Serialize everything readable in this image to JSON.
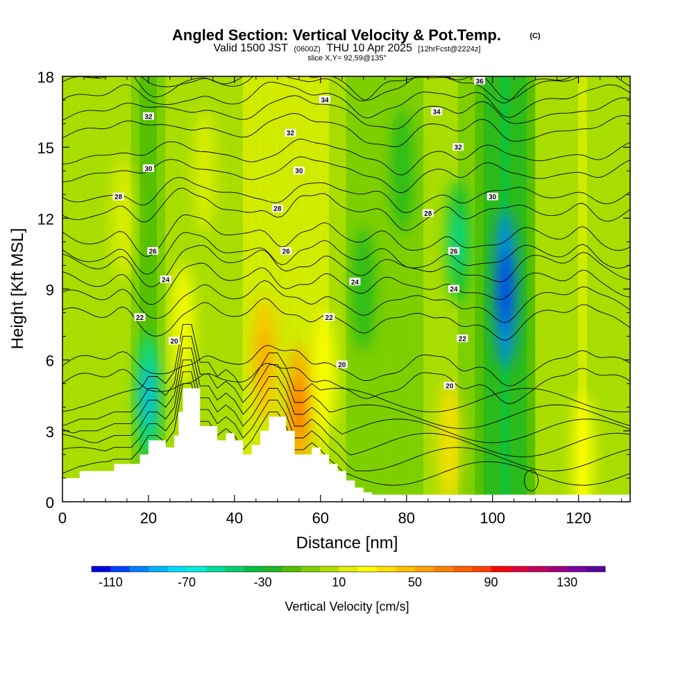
{
  "title": "Angled Section: Vertical Velocity & Pot.Temp.",
  "title_units": "(C)",
  "valid_prefix": "Valid 1500 JST",
  "valid_zulu": "(0600Z)",
  "valid_date": "THU 10 Apr 2025",
  "forecast": "[12hrFcst@2224z]",
  "slice": "slice X,Y= 92,59@135°",
  "chart_data": {
    "type": "heatmap",
    "xlabel": "Distance [nm]",
    "ylabel": "Height [Kft MSL]",
    "xlim": [
      0,
      132
    ],
    "ylim": [
      0,
      18
    ],
    "x_ticks": [
      0,
      20,
      40,
      60,
      80,
      100,
      120
    ],
    "x_tick_labels": [
      "0",
      "20",
      "40",
      "60",
      "80",
      "100",
      "120"
    ],
    "y_ticks": [
      0,
      3,
      6,
      9,
      12,
      15,
      18
    ],
    "y_tick_labels": [
      "0",
      "3",
      "6",
      "9",
      "12",
      "15",
      "18"
    ],
    "colorbar": {
      "label": "Vertical Velocity [cm/s]",
      "min": -120,
      "max": 150,
      "step": 10,
      "tick_values": [
        -110,
        -70,
        -30,
        10,
        50,
        90,
        130
      ],
      "tick_labels": [
        "-110",
        "-70",
        "-30",
        "10",
        "50",
        "90",
        "130"
      ],
      "colors": [
        "#0000e6",
        "#0040ff",
        "#0080ff",
        "#00b4ff",
        "#00dcff",
        "#00f0dc",
        "#00e0a0",
        "#00d070",
        "#00c040",
        "#20b820",
        "#50c000",
        "#80d000",
        "#b0e000",
        "#e0f000",
        "#ffff00",
        "#ffe000",
        "#ffc000",
        "#ffa000",
        "#ff8000",
        "#ff6000",
        "#ff4000",
        "#ff0000",
        "#e0003c",
        "#c00060",
        "#a00080",
        "#7c00a0",
        "#5a00a0"
      ]
    },
    "updraft_cores": [
      {
        "x": 28,
        "y": 7.5,
        "w": 20
      },
      {
        "x": 33,
        "y": 14.0,
        "w": 18
      },
      {
        "x": 47,
        "y": 6.0,
        "w": 40
      },
      {
        "x": 55,
        "y": 4.0,
        "w": 50
      },
      {
        "x": 61,
        "y": 5.5,
        "w": 25
      },
      {
        "x": 14,
        "y": 12.0,
        "w": 18
      },
      {
        "x": 90,
        "y": 2.5,
        "w": 30
      },
      {
        "x": 121,
        "y": 2.0,
        "w": 25
      }
    ],
    "downdraft_cores": [
      {
        "x": 103,
        "y": 9.0,
        "w": -100
      },
      {
        "x": 20,
        "y": 4.5,
        "w": -60
      },
      {
        "x": 92,
        "y": 11.0,
        "w": -40
      },
      {
        "x": 70,
        "y": 9.0,
        "w": -30
      },
      {
        "x": 79,
        "y": 14.0,
        "w": -30
      }
    ],
    "terrain": {
      "x": [
        0,
        4,
        8,
        12,
        16,
        18,
        20,
        22,
        24,
        26,
        27,
        28,
        30,
        32,
        34,
        36,
        38,
        40,
        42,
        44,
        46,
        48,
        50,
        52,
        54,
        56,
        58,
        60,
        62,
        64,
        66,
        68,
        70,
        72,
        132
      ],
      "height": [
        1.0,
        1.3,
        1.3,
        1.6,
        1.6,
        2.0,
        2.6,
        2.6,
        2.3,
        2.8,
        3.8,
        4.8,
        4.8,
        3.2,
        3.2,
        2.6,
        2.9,
        2.6,
        2.0,
        2.4,
        3.0,
        3.6,
        3.6,
        3.0,
        2.0,
        2.0,
        2.3,
        2.0,
        1.6,
        1.3,
        0.9,
        0.6,
        0.4,
        0.3,
        0.3
      ]
    },
    "isentropes": {
      "values": [
        20,
        22,
        24,
        26,
        28,
        30,
        32,
        34,
        36
      ],
      "base_height": [
        5.0,
        7.7,
        9.2,
        10.4,
        12.3,
        14.0,
        15.8,
        17.1,
        17.8
      ]
    },
    "isentrope_labels": [
      {
        "value": "20",
        "x": 26,
        "y": 6.8
      },
      {
        "value": "20",
        "x": 65,
        "y": 5.8
      },
      {
        "value": "20",
        "x": 90,
        "y": 4.9
      },
      {
        "value": "22",
        "x": 18,
        "y": 7.8
      },
      {
        "value": "22",
        "x": 62,
        "y": 7.8
      },
      {
        "value": "22",
        "x": 93,
        "y": 6.9
      },
      {
        "value": "24",
        "x": 24,
        "y": 9.4
      },
      {
        "value": "24",
        "x": 68,
        "y": 9.3
      },
      {
        "value": "24",
        "x": 91,
        "y": 9.0
      },
      {
        "value": "26",
        "x": 21,
        "y": 10.6
      },
      {
        "value": "26",
        "x": 52,
        "y": 10.6
      },
      {
        "value": "26",
        "x": 91,
        "y": 10.6
      },
      {
        "value": "28",
        "x": 13,
        "y": 12.9
      },
      {
        "value": "28",
        "x": 50,
        "y": 12.4
      },
      {
        "value": "28",
        "x": 85,
        "y": 12.2
      },
      {
        "value": "30",
        "x": 20,
        "y": 14.1
      },
      {
        "value": "30",
        "x": 55,
        "y": 14.0
      },
      {
        "value": "30",
        "x": 100,
        "y": 12.9
      },
      {
        "value": "32",
        "x": 20,
        "y": 16.3
      },
      {
        "value": "32",
        "x": 53,
        "y": 15.6
      },
      {
        "value": "32",
        "x": 92,
        "y": 15.0
      },
      {
        "value": "34",
        "x": 61,
        "y": 17.0
      },
      {
        "value": "34",
        "x": 87,
        "y": 16.5
      },
      {
        "value": "36",
        "x": 97,
        "y": 17.8
      }
    ]
  }
}
